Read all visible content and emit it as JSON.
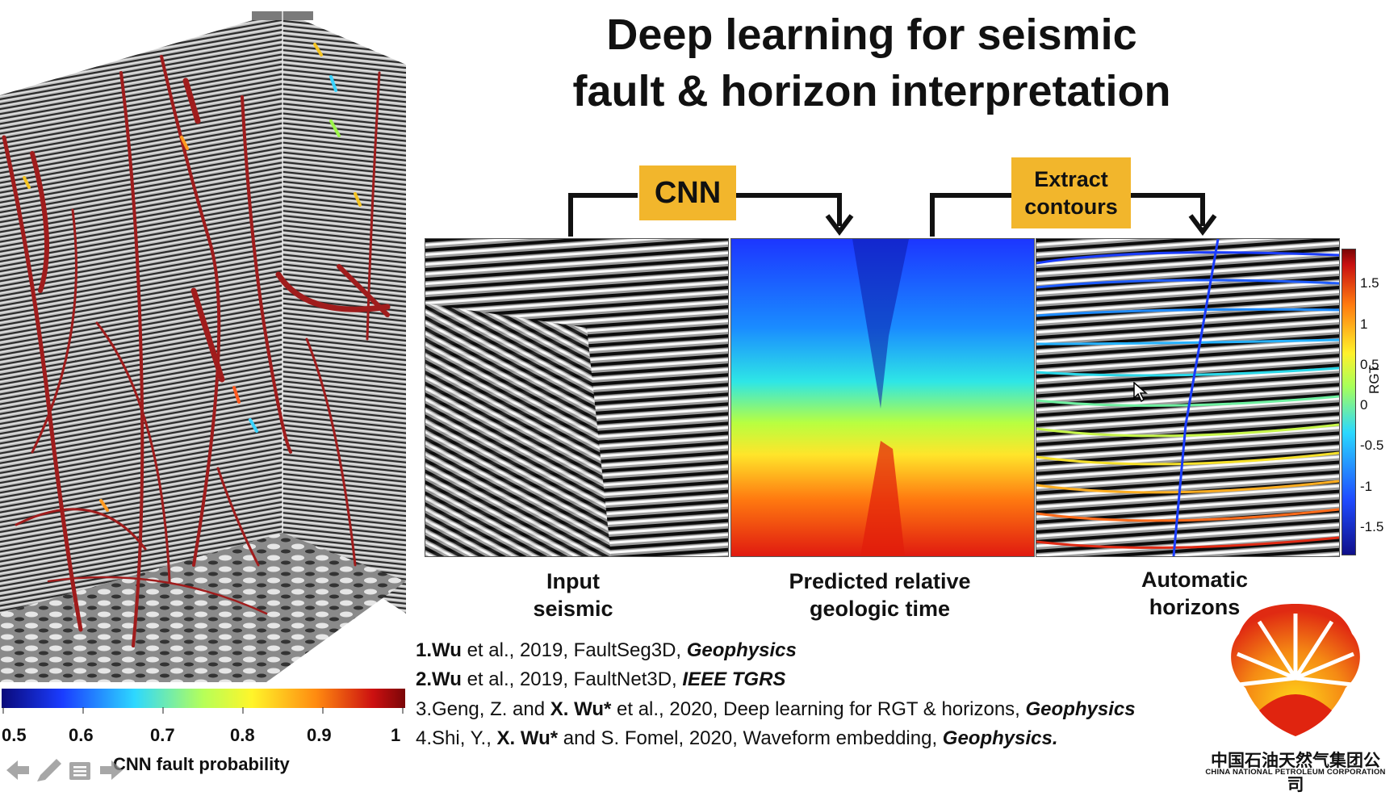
{
  "slide": {
    "title_line1": "Deep learning for seismic",
    "title_line2": "fault & horizon interpretation"
  },
  "workflow": {
    "step1_label": "CNN",
    "step2_label_line1": "Extract",
    "step2_label_line2": "contours",
    "panels": [
      {
        "caption_line1": "Input",
        "caption_line2": "seismic"
      },
      {
        "caption_line1": "Predicted relative",
        "caption_line2": "geologic time"
      },
      {
        "caption_line1": "Automatic",
        "caption_line2": "horizons"
      }
    ]
  },
  "rgt_colorbar": {
    "label": "RGT",
    "ticks": [
      "1.5",
      "1",
      "0.5",
      "0",
      "-0.5",
      "-1",
      "-1.5"
    ]
  },
  "fault_colorbar": {
    "title": "CNN fault probability",
    "ticks": [
      "0.5",
      "0.6",
      "0.7",
      "0.8",
      "0.9",
      "1"
    ]
  },
  "references": [
    {
      "num": "1.",
      "author": "Wu",
      "rest": " et al., 2019, FaultSeg3D, ",
      "journal": "Geophysics"
    },
    {
      "num": "2.",
      "author": "Wu",
      "rest": " et al., 2019, FaultNet3D, ",
      "journal": "IEEE TGRS"
    },
    {
      "num": "3.Geng, Z. and ",
      "author": "X. Wu*",
      "rest": " et al., 2020, Deep learning for RGT & horizons, ",
      "journal": "Geophysics"
    },
    {
      "num": "4.Shi, Y., ",
      "author": "X. Wu*",
      "rest": " and S. Fomel, 2020, Waveform embedding, ",
      "journal": "Geophysics."
    }
  ],
  "company": {
    "name_cn": "中国石油天然气集团公司",
    "name_en": "CHINA NATIONAL PETROLEUM CORPORATION"
  },
  "nav_icons": [
    "arrow-left-icon",
    "pencil-icon",
    "menu-icon",
    "arrow-right-icon"
  ],
  "colors": {
    "label_box": "#f2b62c",
    "fault_red": "#a01c1c"
  }
}
